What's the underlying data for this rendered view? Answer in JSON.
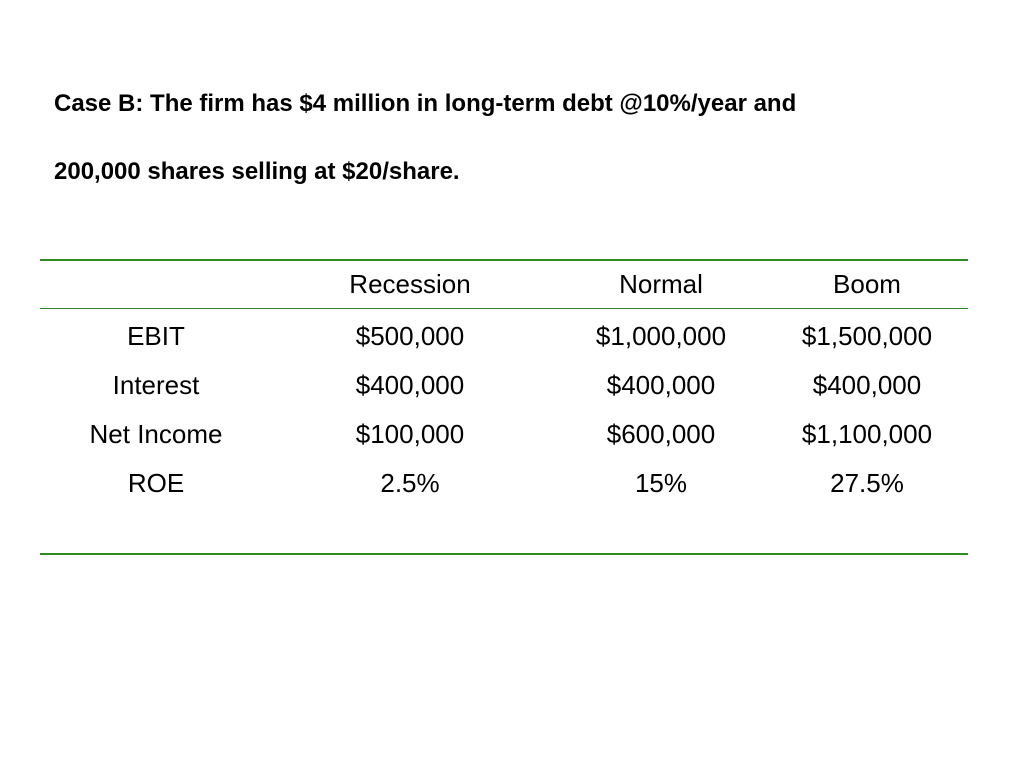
{
  "heading": {
    "line1": "Case B: The firm has $4 million in long-term debt @10%/year and",
    "line2": "200,000 shares selling at $20/share."
  },
  "table": {
    "columns": [
      "",
      "Recession",
      "Normal",
      "Boom"
    ],
    "rows": [
      {
        "label": "EBIT",
        "values": [
          "$500,000",
          "$1,000,000",
          "$1,500,000"
        ]
      },
      {
        "label": "Interest",
        "values": [
          "$400,000",
          "$400,000",
          "$400,000"
        ]
      },
      {
        "label": "Net Income",
        "values": [
          "$100,000",
          "$600,000",
          "$1,100,000"
        ]
      },
      {
        "label": "ROE",
        "values": [
          "2.5%",
          "15%",
          "27.5%"
        ]
      }
    ]
  },
  "colors": {
    "rule": "#2e8b22",
    "text": "#000000",
    "background": "#ffffff"
  }
}
